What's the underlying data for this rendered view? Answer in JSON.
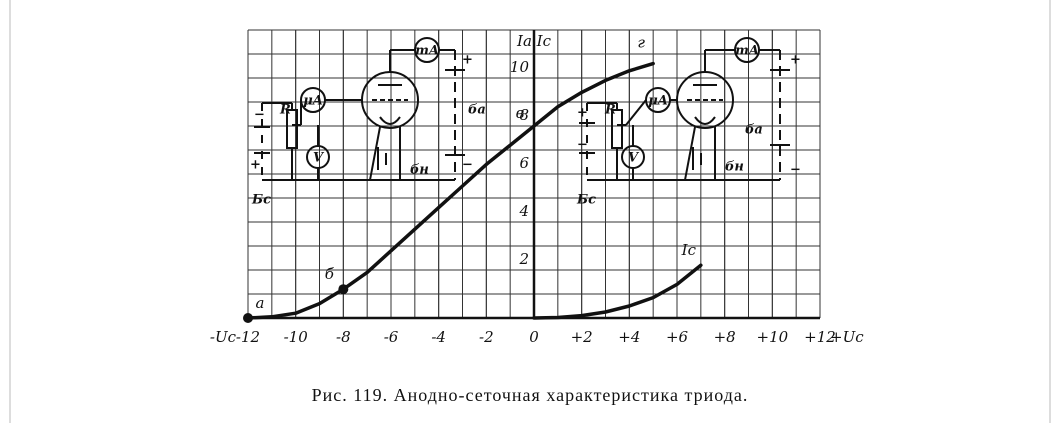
{
  "chart_data": {
    "type": "line",
    "xlim": [
      -12,
      12
    ],
    "ylim": [
      0,
      12
    ],
    "xticks": [
      -12,
      -10,
      -8,
      -6,
      -4,
      -2,
      0,
      {
        "value": 2,
        "label": "+2"
      },
      {
        "value": 4,
        "label": "+4"
      },
      {
        "value": 6,
        "label": "+6"
      },
      {
        "value": 8,
        "label": "+8"
      },
      {
        "value": 10,
        "label": "+10"
      },
      {
        "value": 12,
        "label": "+12"
      }
    ],
    "yticks": [
      2,
      4,
      6,
      8,
      10
    ],
    "xlabel_left": "-Uc",
    "xlabel_right": "+Uc",
    "ylabel": "Ia Ic",
    "grid": true,
    "color": "#111111",
    "series": [
      {
        "x": [
          -12,
          -11,
          -10,
          -9,
          -8,
          -7,
          -6,
          -5,
          -4,
          -3,
          -2,
          -1,
          0,
          1,
          2,
          3,
          4,
          5
        ],
        "values": [
          0,
          0.05,
          0.2,
          0.6,
          1.2,
          1.9,
          2.8,
          3.7,
          4.6,
          5.5,
          6.4,
          7.2,
          8.0,
          8.8,
          9.4,
          9.9,
          10.3,
          10.6
        ]
      },
      {
        "name": "Ic",
        "x": [
          0,
          1,
          2,
          3,
          4,
          5,
          6,
          7
        ],
        "values": [
          0,
          0.02,
          0.1,
          0.25,
          0.5,
          0.85,
          1.4,
          2.2
        ]
      }
    ],
    "points": [
      {
        "label": "а",
        "x": -12,
        "y": 0,
        "marker": true
      },
      {
        "label": "б",
        "x": -8,
        "y": 1.2,
        "marker": true
      },
      {
        "label": "в",
        "x": 0,
        "y": 8,
        "marker": false
      },
      {
        "label": "г",
        "x": 5,
        "y": 10.6,
        "marker": false
      }
    ],
    "caption": "Рис. 119. Анодно-сеточная характеристика триода."
  },
  "diagrams": [
    {
      "labels": [
        "mA",
        "μA",
        "V",
        "R",
        "Бс",
        "ба",
        "бн",
        "+",
        "−",
        "−",
        "+"
      ]
    },
    {
      "labels": [
        "mA",
        "μA",
        "V",
        "R",
        "Бс",
        "ба",
        "бн",
        "+",
        "−",
        "+",
        "−"
      ]
    }
  ]
}
